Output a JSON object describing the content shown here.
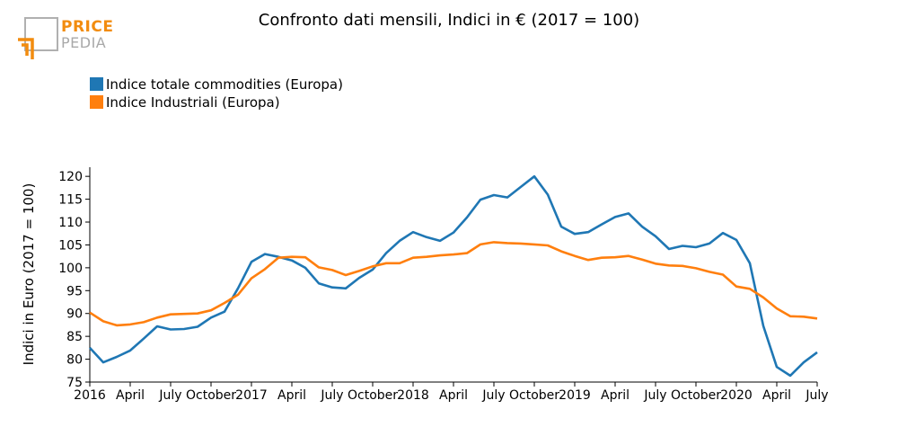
{
  "header": {
    "logo_line1": "PRICE",
    "logo_line2": "PEDIA"
  },
  "chart_data": {
    "type": "line",
    "title": "Confronto dati mensili, Indici in € (2017 = 100)",
    "xlabel": "",
    "ylabel": "Indici in Euro (2017 = 100)",
    "ylim": [
      75,
      122
    ],
    "yticks": [
      75,
      80,
      85,
      90,
      95,
      100,
      105,
      110,
      115,
      120
    ],
    "x_range": [
      0,
      54
    ],
    "x_ticks": [
      {
        "index": 0,
        "label": "2016"
      },
      {
        "index": 3,
        "label": "April"
      },
      {
        "index": 6,
        "label": "July"
      },
      {
        "index": 9,
        "label": "October"
      },
      {
        "index": 12,
        "label": "2017"
      },
      {
        "index": 15,
        "label": "April"
      },
      {
        "index": 18,
        "label": "July"
      },
      {
        "index": 21,
        "label": "October"
      },
      {
        "index": 24,
        "label": "2018"
      },
      {
        "index": 27,
        "label": "April"
      },
      {
        "index": 30,
        "label": "July"
      },
      {
        "index": 33,
        "label": "October"
      },
      {
        "index": 36,
        "label": "2019"
      },
      {
        "index": 39,
        "label": "April"
      },
      {
        "index": 42,
        "label": "July"
      },
      {
        "index": 45,
        "label": "October"
      },
      {
        "index": 48,
        "label": "2020"
      },
      {
        "index": 51,
        "label": "April"
      },
      {
        "index": 54,
        "label": "July"
      }
    ],
    "legend_position": "top-left",
    "series": [
      {
        "name": "Indice totale commodities (Europa)",
        "color": "#1f77b4",
        "values": [
          82.5,
          79.3,
          80.5,
          81.9,
          84.5,
          87.2,
          86.5,
          86.6,
          87.1,
          89.1,
          90.4,
          95.5,
          101.3,
          103.0,
          102.4,
          101.6,
          100.0,
          96.6,
          95.7,
          95.5,
          97.8,
          99.6,
          103.2,
          105.9,
          107.8,
          106.7,
          105.9,
          107.7,
          111.0,
          114.9,
          115.9,
          115.4,
          117.7,
          120.0,
          116.0,
          109.0,
          107.4,
          107.8,
          109.5,
          111.1,
          111.9,
          109.0,
          106.9,
          104.1,
          104.8,
          104.5,
          105.3,
          107.6,
          106.1,
          101.0,
          87.3,
          78.3,
          76.4,
          79.3,
          81.5
        ]
      },
      {
        "name": "Indice Industriali (Europa)",
        "color": "#ff7f0e",
        "values": [
          90.2,
          88.3,
          87.4,
          87.6,
          88.1,
          89.1,
          89.8,
          89.9,
          90.0,
          90.7,
          92.3,
          94.1,
          97.7,
          99.7,
          102.2,
          102.4,
          102.3,
          100.1,
          99.5,
          98.4,
          99.3,
          100.3,
          101.0,
          101.0,
          102.2,
          102.4,
          102.7,
          102.9,
          103.2,
          105.1,
          105.6,
          105.4,
          105.3,
          105.1,
          104.9,
          103.6,
          102.6,
          101.7,
          102.2,
          102.3,
          102.6,
          101.8,
          100.9,
          100.5,
          100.4,
          99.9,
          99.1,
          98.5,
          95.9,
          95.4,
          93.5,
          91.1,
          89.4,
          89.3,
          88.9
        ]
      }
    ]
  }
}
